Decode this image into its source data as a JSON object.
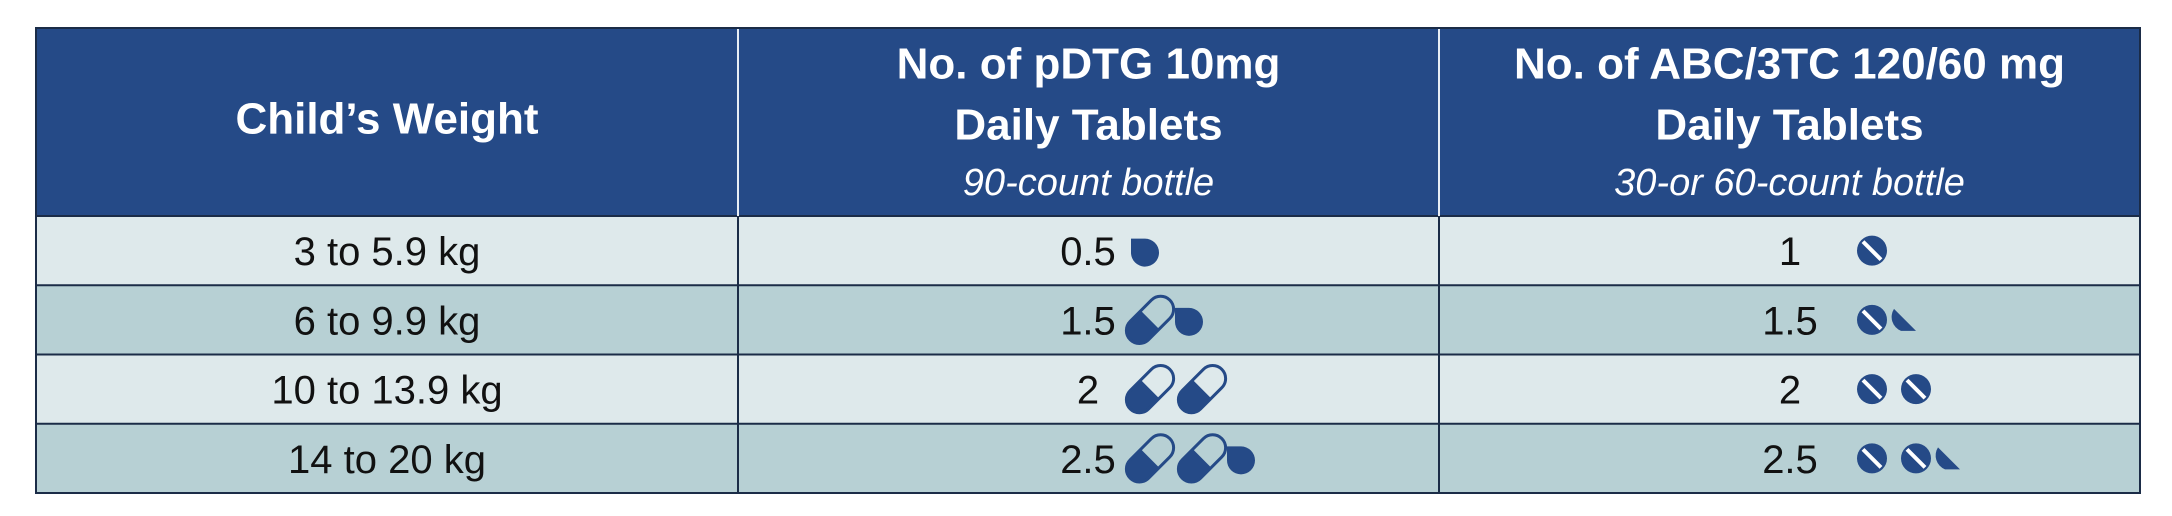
{
  "table": {
    "header": [
      {
        "title": [
          "Child’s Weight"
        ]
      },
      {
        "title": [
          "No. of pDTG 10mg",
          "Daily Tablets"
        ],
        "subtitle": "90-count bottle"
      },
      {
        "title": [
          "No. of ABC/3TC 120/60 mg",
          "Daily Tablets"
        ],
        "subtitle": "30-or 60-count bottle"
      }
    ],
    "rows": [
      [
        "3 to 5.9 kg",
        0.5,
        1
      ],
      [
        "6 to 9.9 kg",
        1.5,
        1.5
      ],
      [
        "10 to 13.9 kg",
        2,
        2
      ],
      [
        "14 to 20 kg",
        2.5,
        2.5
      ]
    ]
  }
}
